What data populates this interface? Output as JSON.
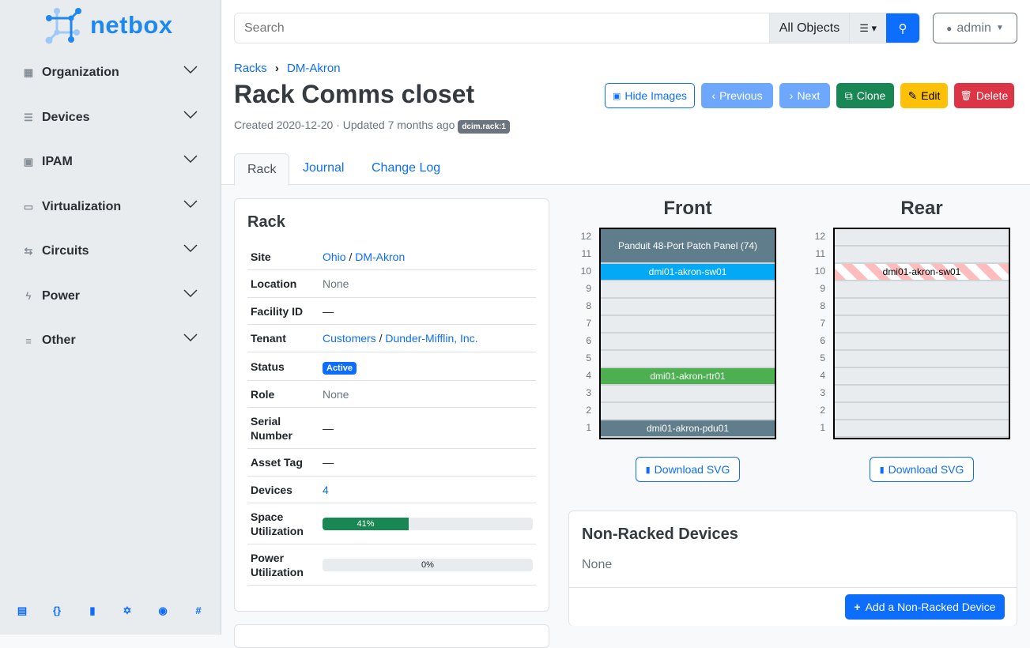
{
  "brand": {
    "name": "netbox",
    "color": "#1e88f0"
  },
  "sidebar": {
    "items": [
      {
        "label": "Organization",
        "icon": "domain-icon"
      },
      {
        "label": "Devices",
        "icon": "server-icon"
      },
      {
        "label": "IPAM",
        "icon": "counter-icon"
      },
      {
        "label": "Virtualization",
        "icon": "monitor-icon"
      },
      {
        "label": "Circuits",
        "icon": "transit-icon"
      },
      {
        "label": "Power",
        "icon": "flash-icon"
      },
      {
        "label": "Other",
        "icon": "notes-icon"
      }
    ],
    "footer_icons": [
      "docs-icon",
      "api-icon",
      "bookmark-icon",
      "graphql-icon",
      "github-icon",
      "slack-icon"
    ]
  },
  "header": {
    "search_placeholder": "Search",
    "scope": "All Objects",
    "user": "admin"
  },
  "breadcrumb": [
    "Racks",
    "DM-Akron"
  ],
  "page": {
    "title": "Rack Comms closet",
    "created": "Created 2020-12-20",
    "updated": "Updated 7 months ago",
    "badge": "dcim.rack:1"
  },
  "actions": {
    "hide_images": "Hide Images",
    "previous": "Previous",
    "next": "Next",
    "clone": "Clone",
    "edit": "Edit",
    "delete": "Delete"
  },
  "tabs": [
    "Rack",
    "Journal",
    "Change Log"
  ],
  "rack_card": {
    "title": "Rack",
    "rows": [
      {
        "k": "Site",
        "v": [
          "Ohio",
          "DM-Akron"
        ]
      },
      {
        "k": "Location",
        "v": "None"
      },
      {
        "k": "Facility ID",
        "v": "—"
      },
      {
        "k": "Tenant",
        "v": [
          "Customers",
          "Dunder-Mifflin, Inc."
        ]
      },
      {
        "k": "Status",
        "v": "Active"
      },
      {
        "k": "Role",
        "v": "None"
      },
      {
        "k": "Serial Number",
        "v": "—"
      },
      {
        "k": "Asset Tag",
        "v": "—"
      },
      {
        "k": "Devices",
        "v": "4"
      },
      {
        "k": "Space Utilization",
        "v": "41%",
        "percent": 41
      },
      {
        "k": "Power Utilization",
        "v": "0%",
        "percent": 0
      }
    ]
  },
  "elevations": {
    "front": {
      "title": "Front",
      "devices": [
        {
          "name": "Panduit 48-Port Patch Panel (74)",
          "top": 12,
          "height": 2,
          "color": "#607d8b"
        },
        {
          "name": "dmi01-akron-sw01",
          "top": 10,
          "height": 1,
          "color": "#03a9f4"
        },
        {
          "name": "dmi01-akron-rtr01",
          "top": 4,
          "height": 1,
          "color": "#4caf50"
        },
        {
          "name": "dmi01-akron-pdu01",
          "top": 1,
          "height": 1,
          "color": "#607d8b"
        }
      ]
    },
    "rear": {
      "title": "Rear",
      "devices": [
        {
          "name": "dmi01-akron-sw01",
          "top": 10,
          "height": 1,
          "color": "striped"
        }
      ]
    },
    "units": 12,
    "download": "Download SVG"
  },
  "non_racked": {
    "title": "Non-Racked Devices",
    "value": "None",
    "add": "Add a Non-Racked Device"
  }
}
